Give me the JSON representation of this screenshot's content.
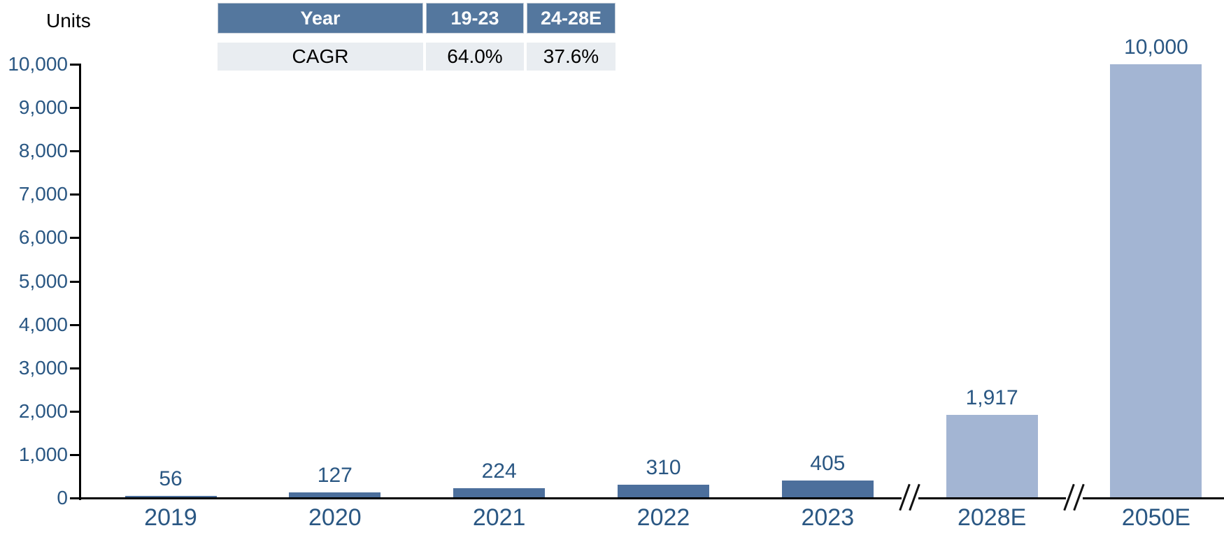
{
  "units_label": "Units",
  "cagr_table": {
    "headers": [
      "Year",
      "19-23",
      "24-28E"
    ],
    "row": [
      "CAGR",
      "64.0%",
      "37.6%"
    ]
  },
  "chart_data": {
    "type": "bar",
    "title": "",
    "ylabel": "Units",
    "xlabel": "",
    "categories": [
      "2019",
      "2020",
      "2021",
      "2022",
      "2023",
      "2028E",
      "2050E"
    ],
    "values": [
      56,
      127,
      224,
      310,
      405,
      1917,
      10000
    ],
    "value_labels": [
      "56",
      "127",
      "224",
      "310",
      "405",
      "1,917",
      "10,000"
    ],
    "bar_colors": [
      "#4C6F9C",
      "#4C6F9C",
      "#4C6F9C",
      "#4C6F9C",
      "#4C6F9C",
      "#A3B5D3",
      "#A3B5D3"
    ],
    "ylim": [
      0,
      10000
    ],
    "ytick_step": 1000,
    "ytick_labels": [
      "0",
      "1,000",
      "2,000",
      "3,000",
      "4,000",
      "5,000",
      "6,000",
      "7,000",
      "8,000",
      "9,000",
      "10,000"
    ],
    "axis_breaks_after_index": [
      4,
      5
    ],
    "grid": false,
    "legend_position": "none"
  },
  "colors": {
    "axis": "#000000",
    "chart_text": "#2A5783",
    "table_header_bg": "#54779E",
    "table_header_text": "#FFFFFF",
    "table_row_bg": "#E9EDF1",
    "bar_dark": "#4C6F9C",
    "bar_light": "#A3B5D3"
  }
}
